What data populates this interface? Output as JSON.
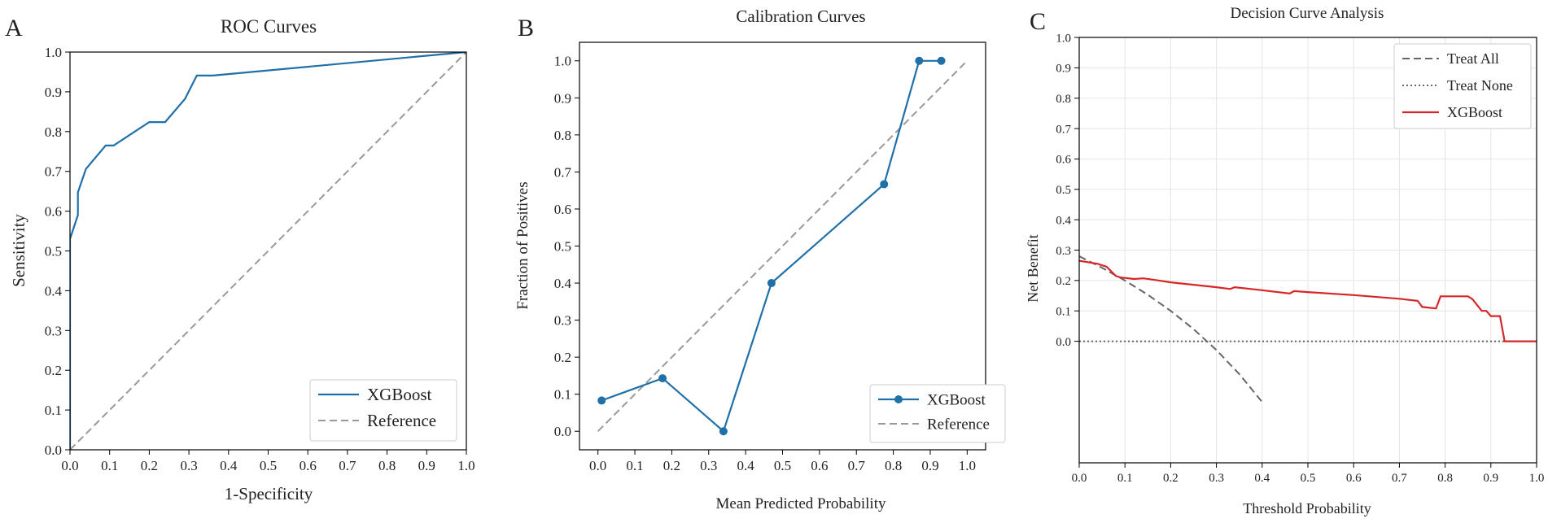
{
  "chart_data": [
    {
      "type": "line",
      "panel_label": "A",
      "title": "ROC Curves",
      "xlabel": "1-Specificity",
      "ylabel": "Sensitivity",
      "xlim": [
        0,
        1
      ],
      "ylim": [
        0,
        1
      ],
      "xticks": [
        "0.0",
        "0.1",
        "0.2",
        "0.3",
        "0.4",
        "0.5",
        "0.6",
        "0.7",
        "0.8",
        "0.9",
        "1.0"
      ],
      "yticks": [
        "0.0",
        "0.1",
        "0.2",
        "0.3",
        "0.4",
        "0.5",
        "0.6",
        "0.7",
        "0.8",
        "0.9",
        "1.0"
      ],
      "grid": false,
      "legend_position": "bottom-right",
      "series": [
        {
          "name": "XGBoost",
          "color": "#1f6fa8",
          "style": "solid",
          "x": [
            0,
            0,
            0.02,
            0.02,
            0.04,
            0.09,
            0.11,
            0.2,
            0.24,
            0.29,
            0.32,
            0.36,
            1.0
          ],
          "y": [
            0,
            0.53,
            0.59,
            0.647,
            0.706,
            0.765,
            0.765,
            0.824,
            0.824,
            0.882,
            0.941,
            0.941,
            1.0
          ]
        },
        {
          "name": "Reference",
          "color": "#999999",
          "style": "dashed",
          "x": [
            0,
            1
          ],
          "y": [
            0,
            1
          ]
        }
      ]
    },
    {
      "type": "line",
      "panel_label": "B",
      "title": "Calibration Curves",
      "xlabel": "Mean Predicted Probability",
      "ylabel": "Fraction of Positives",
      "xlim": [
        -0.05,
        1.05
      ],
      "ylim": [
        -0.05,
        1.05
      ],
      "xticks": [
        "0.0",
        "0.1",
        "0.2",
        "0.3",
        "0.4",
        "0.5",
        "0.6",
        "0.7",
        "0.8",
        "0.9",
        "1.0"
      ],
      "yticks": [
        "0.0",
        "0.1",
        "0.2",
        "0.3",
        "0.4",
        "0.5",
        "0.6",
        "0.7",
        "0.8",
        "0.9",
        "1.0"
      ],
      "grid": false,
      "legend_position": "bottom-right",
      "series": [
        {
          "name": "XGBoost",
          "color": "#1f6fa8",
          "style": "solid-markers",
          "x": [
            0.01,
            0.175,
            0.34,
            0.47,
            0.775,
            0.87,
            0.93
          ],
          "y": [
            0.083,
            0.143,
            0.0,
            0.4,
            0.667,
            1.0,
            1.0
          ]
        },
        {
          "name": "Reference",
          "color": "#999999",
          "style": "dashed",
          "x": [
            0,
            1
          ],
          "y": [
            0,
            1
          ]
        }
      ]
    },
    {
      "type": "line",
      "panel_label": "C",
      "title": "Decision Curve Analysis",
      "xlabel": "Threshold Probability",
      "ylabel": "Net Benefit",
      "xlim": [
        0,
        1
      ],
      "ylim": [
        -0.4,
        1.0
      ],
      "xticks": [
        "0.0",
        "0.1",
        "0.2",
        "0.3",
        "0.4",
        "0.5",
        "0.6",
        "0.7",
        "0.8",
        "0.9",
        "1.0"
      ],
      "yticks": [
        "0.0",
        "0.1",
        "0.2",
        "0.3",
        "0.4",
        "0.5",
        "0.6",
        "0.7",
        "0.8",
        "0.9",
        "1.0"
      ],
      "grid": true,
      "legend_position": "top-right",
      "series": [
        {
          "name": "Treat All",
          "color": "#666666",
          "style": "dashed",
          "x": [
            0,
            0.05,
            0.1,
            0.15,
            0.2,
            0.25,
            0.3,
            0.35,
            0.4
          ],
          "y": [
            0.28,
            0.242,
            0.2,
            0.153,
            0.1,
            0.04,
            -0.029,
            -0.108,
            -0.2
          ]
        },
        {
          "name": "Treat None",
          "color": "#666666",
          "style": "dotted",
          "x": [
            0,
            1
          ],
          "y": [
            0,
            0
          ]
        },
        {
          "name": "XGBoost",
          "color": "#d62728",
          "style": "solid",
          "x": [
            0,
            0.02,
            0.04,
            0.06,
            0.08,
            0.09,
            0.12,
            0.14,
            0.16,
            0.2,
            0.25,
            0.3,
            0.33,
            0.34,
            0.4,
            0.46,
            0.47,
            0.5,
            0.6,
            0.7,
            0.74,
            0.75,
            0.78,
            0.79,
            0.82,
            0.85,
            0.86,
            0.88,
            0.89,
            0.9,
            0.91,
            0.92,
            0.93,
            0.95,
            1.0
          ],
          "y": [
            0.265,
            0.26,
            0.255,
            0.245,
            0.215,
            0.21,
            0.205,
            0.207,
            0.203,
            0.194,
            0.186,
            0.178,
            0.172,
            0.178,
            0.168,
            0.157,
            0.165,
            0.162,
            0.152,
            0.14,
            0.133,
            0.113,
            0.108,
            0.148,
            0.148,
            0.148,
            0.138,
            0.1,
            0.1,
            0.083,
            0.083,
            0.083,
            0.0,
            0.0,
            0.0
          ]
        }
      ]
    }
  ]
}
